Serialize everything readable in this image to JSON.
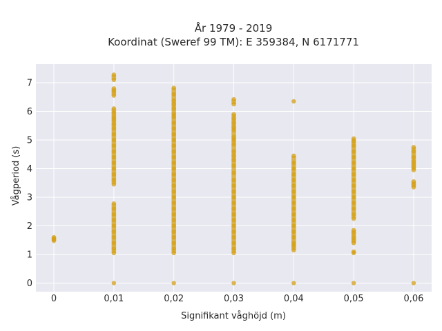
{
  "chart_data": {
    "type": "scatter",
    "title": "År 1979 - 2019",
    "subtitle": "Koordinat (Sweref 99 TM): E 359384, N 6171771",
    "xlabel": "Signifikant våghöjd (m)",
    "ylabel": "Vågperiod (s)",
    "xlim": [
      -0.003,
      0.063
    ],
    "ylim": [
      -0.3,
      7.65
    ],
    "x_ticks": [
      0,
      0.01,
      0.02,
      0.03,
      0.04,
      0.05,
      0.06
    ],
    "x_tick_labels": [
      "0",
      "0,01",
      "0,02",
      "0,03",
      "0,04",
      "0,05",
      "0,06"
    ],
    "y_ticks": [
      0,
      1,
      2,
      3,
      4,
      5,
      6,
      7
    ],
    "y_tick_labels": [
      "0",
      "1",
      "2",
      "3",
      "4",
      "5",
      "6",
      "7"
    ],
    "grid": true,
    "legend": "none",
    "colors": {
      "marker": "#d4a017",
      "plot_bg": "#e8e8f0",
      "grid": "#ffffff"
    },
    "points": [
      {
        "x": 0,
        "y": [
          1.48,
          1.52,
          1.56,
          1.6
        ]
      },
      {
        "x": 0.01,
        "y": [
          0,
          1.05,
          1.2,
          1.4,
          1.6,
          1.8,
          2.0,
          2.2,
          2.4,
          2.6,
          2.78,
          3.45,
          3.6,
          3.8,
          4.0,
          4.2,
          4.4,
          4.6,
          4.8,
          5.0,
          5.2,
          5.4,
          5.55,
          5.7,
          5.8,
          5.95,
          6.1,
          6.55,
          6.7,
          6.8,
          7.1,
          7.28
        ]
      },
      {
        "x": 0.02,
        "y": [
          0,
          1.05,
          1.2,
          1.4,
          1.6,
          1.8,
          2.0,
          2.2,
          2.4,
          2.6,
          2.8,
          3.0,
          3.2,
          3.4,
          3.6,
          3.8,
          4.0,
          4.2,
          4.4,
          4.6,
          4.8,
          5.0,
          5.2,
          5.4,
          5.6,
          5.8,
          5.9,
          6.1,
          6.25,
          6.38,
          6.6,
          6.82
        ]
      },
      {
        "x": 0.03,
        "y": [
          0,
          1.05,
          1.2,
          1.4,
          1.6,
          1.8,
          2.0,
          2.2,
          2.4,
          2.6,
          2.8,
          3.0,
          3.2,
          3.4,
          3.6,
          3.85,
          4.1,
          4.3,
          4.45,
          4.6,
          4.85,
          5.0,
          5.1,
          5.35,
          5.45,
          5.6,
          5.75,
          5.9,
          6.25,
          6.42
        ]
      },
      {
        "x": 0.04,
        "y": [
          0,
          1.15,
          1.3,
          1.4,
          1.6,
          1.8,
          2.0,
          2.2,
          2.4,
          2.6,
          2.8,
          3.0,
          3.2,
          3.4,
          3.6,
          3.8,
          4.0,
          4.2,
          4.45,
          6.35
        ]
      },
      {
        "x": 0.05,
        "y": [
          0,
          1.05,
          1.1,
          1.4,
          1.5,
          1.6,
          1.75,
          1.85,
          2.25,
          2.4,
          2.6,
          2.8,
          3.0,
          3.2,
          3.4,
          3.6,
          3.8,
          4.0,
          4.2,
          4.4,
          4.6,
          4.8,
          4.95,
          5.05
        ]
      },
      {
        "x": 0.06,
        "y": [
          0,
          3.35,
          3.45,
          3.55,
          3.95,
          4.05,
          4.15,
          4.25,
          4.4,
          4.6,
          4.75
        ]
      }
    ]
  }
}
